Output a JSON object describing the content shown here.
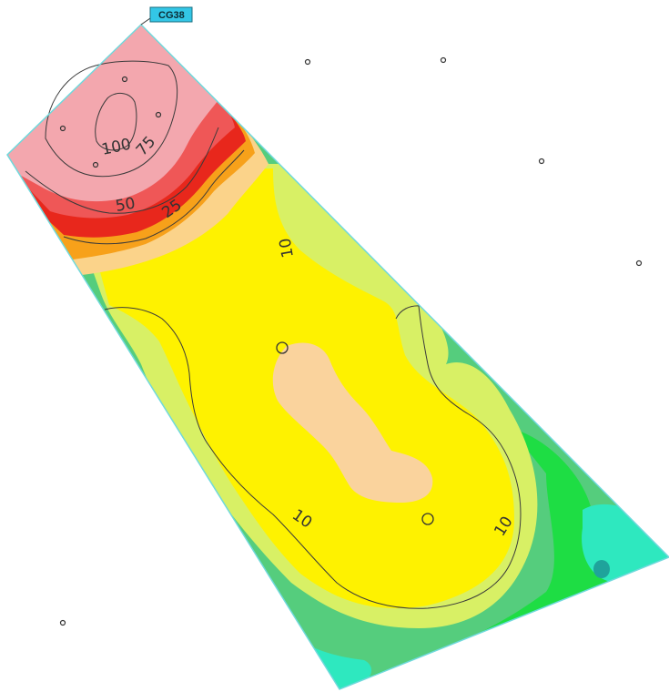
{
  "map": {
    "tag_label": "CG38",
    "colors": {
      "boundary": "#6fd9dc",
      "tag_fill": "#33c6e6",
      "contour_line": "#3a3a3a",
      "band_gt_100": "#f3a7ae",
      "band_75_100": "#f08c8c",
      "band_50_75": "#ef5757",
      "band_25_50": "#e8271c",
      "band_orange": "#f7a11a",
      "band_light_orange": "#fbd38a",
      "band_yellow": "#fef200",
      "band_peach": "#fad39d",
      "band_yellow_green": "#d8f065",
      "band_green": "#55cd7d",
      "band_bright_green": "#1edd44",
      "band_aqua": "#2ee8bf",
      "band_teal_dot": "#1fa39b"
    },
    "contour_labels": [
      {
        "text": "100"
      },
      {
        "text": "75"
      },
      {
        "text": "50"
      },
      {
        "text": "25"
      },
      {
        "text": "10"
      },
      {
        "text": "10"
      },
      {
        "text": "10"
      }
    ],
    "sample_points": [
      {
        "id": "pt-1"
      },
      {
        "id": "pt-2"
      },
      {
        "id": "pt-3"
      },
      {
        "id": "pt-4"
      },
      {
        "id": "pt-5"
      },
      {
        "id": "pt-6"
      },
      {
        "id": "pt-7"
      },
      {
        "id": "pt-8"
      },
      {
        "id": "pt-9"
      },
      {
        "id": "pt-10"
      },
      {
        "id": "pt-11"
      },
      {
        "id": "pt-12"
      }
    ]
  }
}
